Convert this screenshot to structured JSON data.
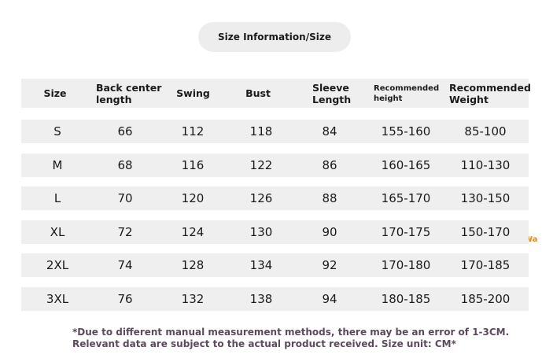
{
  "header": {
    "title": "Size Information/Size"
  },
  "table": {
    "columns": [
      "Size",
      "Back center length",
      "Swing",
      "Bust",
      "Sleeve Length",
      "Recommended height",
      "Recommended Weight"
    ],
    "rows": [
      [
        "S",
        "66",
        "112",
        "118",
        "84",
        "155-160",
        "85-100"
      ],
      [
        "M",
        "68",
        "116",
        "122",
        "86",
        "160-165",
        "110-130"
      ],
      [
        "L",
        "70",
        "120",
        "126",
        "88",
        "165-170",
        "130-150"
      ],
      [
        "XL",
        "72",
        "124",
        "130",
        "90",
        "170-175",
        "150-170"
      ],
      [
        "2XL",
        "74",
        "128",
        "134",
        "92",
        "170-180",
        "170-185"
      ],
      [
        "3XL",
        "76",
        "132",
        "138",
        "94",
        "180-185",
        "185-200"
      ]
    ]
  },
  "notes": [
    "*Due to different manual measurement methods, there may be an error of 1-3CM.",
    "Relevant data are subject to the actual product received. Size unit: CM*"
  ],
  "annotation": "Wa"
}
